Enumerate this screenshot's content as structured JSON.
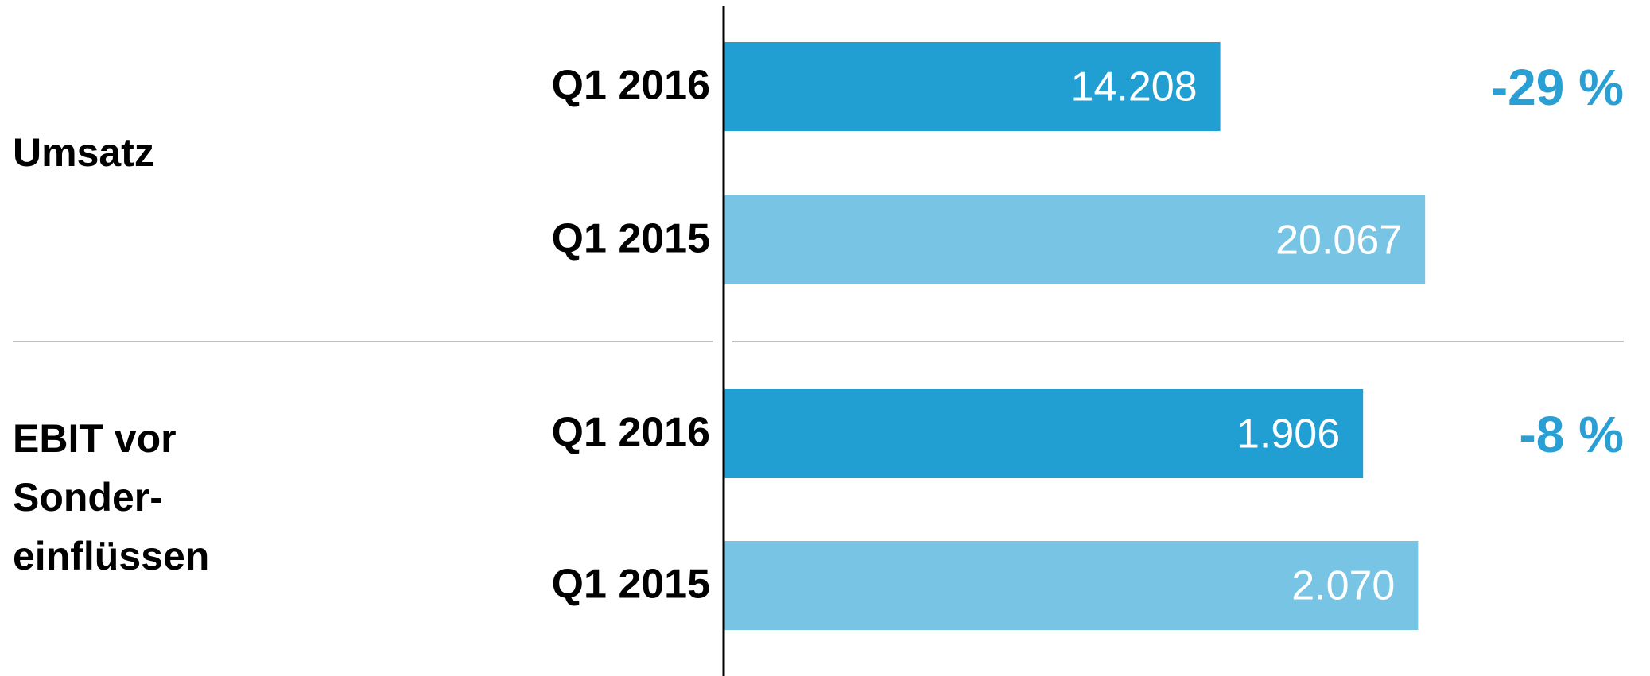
{
  "chart_data": [
    {
      "type": "bar",
      "orientation": "horizontal",
      "title": [
        "Umsatz"
      ],
      "categories": [
        "Q1 2016",
        "Q1 2015"
      ],
      "values": [
        14208,
        20067
      ],
      "value_labels": [
        "14.208",
        "20.067"
      ],
      "colors": [
        "#229fd2",
        "#77c4e4"
      ],
      "xlim": [
        0,
        25750
      ],
      "annotation": "-29 %"
    },
    {
      "type": "bar",
      "orientation": "horizontal",
      "title": [
        "EBIT vor",
        "Sonder-",
        "einflüssen"
      ],
      "categories": [
        "Q1 2016",
        "Q1 2015"
      ],
      "values": [
        1906,
        2070
      ],
      "value_labels": [
        "1.906",
        "2.070"
      ],
      "colors": [
        "#229fd2",
        "#77c4e4"
      ],
      "xlim": [
        0,
        2683
      ],
      "annotation": "-8 %"
    }
  ]
}
